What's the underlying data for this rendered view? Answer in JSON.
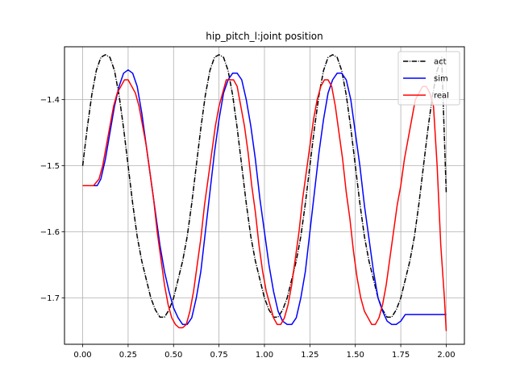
{
  "chart_data": {
    "type": "line",
    "title": "hip_pitch_l:joint position",
    "xlabel": "",
    "ylabel": "",
    "xlim": [
      -0.1,
      2.1
    ],
    "ylim": [
      -1.77,
      -1.32
    ],
    "xticks": [
      0.0,
      0.25,
      0.5,
      0.75,
      1.0,
      1.25,
      1.5,
      1.75,
      2.0
    ],
    "xtick_labels": [
      "0.00",
      "0.25",
      "0.50",
      "0.75",
      "1.00",
      "1.25",
      "1.50",
      "1.75",
      "2.00"
    ],
    "yticks": [
      -1.7,
      -1.6,
      -1.5,
      -1.4
    ],
    "ytick_labels": [
      "−1.7",
      "−1.6",
      "−1.5",
      "−1.4"
    ],
    "grid": true,
    "legend_position": "top-right",
    "series": [
      {
        "name": "act",
        "color": "#000000",
        "style": "dashdot",
        "x": [
          0.0,
          0.025,
          0.05,
          0.075,
          0.1,
          0.125,
          0.15,
          0.175,
          0.2,
          0.225,
          0.25,
          0.275,
          0.3,
          0.325,
          0.35,
          0.375,
          0.4,
          0.425,
          0.45,
          0.475,
          0.5,
          0.525,
          0.55,
          0.575,
          0.6,
          0.625,
          0.65,
          0.675,
          0.7,
          0.725,
          0.75,
          0.775,
          0.8,
          0.825,
          0.85,
          0.875,
          0.9,
          0.925,
          0.95,
          0.975,
          1.0,
          1.025,
          1.05,
          1.075,
          1.1,
          1.125,
          1.15,
          1.175,
          1.2,
          1.225,
          1.25,
          1.275,
          1.3,
          1.325,
          1.35,
          1.375,
          1.4,
          1.425,
          1.45,
          1.475,
          1.5,
          1.525,
          1.55,
          1.575,
          1.6,
          1.625,
          1.65,
          1.675,
          1.7,
          1.725,
          1.75,
          1.775,
          1.8,
          1.825,
          1.85,
          1.875,
          1.9,
          1.925,
          1.95,
          1.975,
          2.0
        ],
        "values": [
          -1.5,
          -1.443,
          -1.393,
          -1.356,
          -1.336,
          -1.332,
          -1.336,
          -1.356,
          -1.393,
          -1.443,
          -1.5,
          -1.557,
          -1.607,
          -1.644,
          -1.672,
          -1.7,
          -1.718,
          -1.729,
          -1.729,
          -1.718,
          -1.7,
          -1.672,
          -1.644,
          -1.607,
          -1.557,
          -1.5,
          -1.443,
          -1.393,
          -1.356,
          -1.336,
          -1.332,
          -1.336,
          -1.356,
          -1.393,
          -1.443,
          -1.5,
          -1.557,
          -1.607,
          -1.644,
          -1.672,
          -1.7,
          -1.718,
          -1.729,
          -1.729,
          -1.718,
          -1.7,
          -1.672,
          -1.644,
          -1.607,
          -1.557,
          -1.5,
          -1.443,
          -1.393,
          -1.356,
          -1.336,
          -1.332,
          -1.336,
          -1.356,
          -1.393,
          -1.443,
          -1.5,
          -1.557,
          -1.607,
          -1.644,
          -1.672,
          -1.7,
          -1.718,
          -1.729,
          -1.729,
          -1.718,
          -1.7,
          -1.672,
          -1.644,
          -1.607,
          -1.557,
          -1.5,
          -1.443,
          -1.393,
          -1.356,
          -1.336,
          -1.54
        ]
      },
      {
        "name": "sim",
        "color": "#0000ff",
        "style": "solid",
        "x": [
          0.0,
          0.05,
          0.08,
          0.1,
          0.125,
          0.15,
          0.175,
          0.2,
          0.225,
          0.25,
          0.275,
          0.3,
          0.325,
          0.35,
          0.375,
          0.4,
          0.425,
          0.45,
          0.475,
          0.5,
          0.525,
          0.55,
          0.575,
          0.6,
          0.625,
          0.65,
          0.675,
          0.7,
          0.725,
          0.75,
          0.775,
          0.8,
          0.825,
          0.85,
          0.875,
          0.9,
          0.925,
          0.95,
          0.975,
          1.0,
          1.025,
          1.05,
          1.075,
          1.1,
          1.125,
          1.15,
          1.175,
          1.2,
          1.225,
          1.25,
          1.275,
          1.3,
          1.325,
          1.35,
          1.375,
          1.4,
          1.425,
          1.45,
          1.475,
          1.5,
          1.525,
          1.55,
          1.575,
          1.6,
          1.625,
          1.65,
          1.675,
          1.7,
          1.725,
          1.75,
          1.775,
          1.8,
          1.825,
          1.85,
          1.875,
          1.9,
          1.925,
          1.95,
          1.975,
          2.0
        ],
        "values": [
          -1.53,
          -1.53,
          -1.53,
          -1.52,
          -1.49,
          -1.45,
          -1.41,
          -1.38,
          -1.36,
          -1.355,
          -1.36,
          -1.38,
          -1.42,
          -1.47,
          -1.52,
          -1.57,
          -1.62,
          -1.66,
          -1.69,
          -1.715,
          -1.73,
          -1.74,
          -1.74,
          -1.73,
          -1.7,
          -1.66,
          -1.6,
          -1.54,
          -1.48,
          -1.43,
          -1.39,
          -1.37,
          -1.36,
          -1.36,
          -1.37,
          -1.4,
          -1.44,
          -1.49,
          -1.55,
          -1.6,
          -1.65,
          -1.69,
          -1.72,
          -1.735,
          -1.74,
          -1.74,
          -1.73,
          -1.7,
          -1.66,
          -1.6,
          -1.54,
          -1.48,
          -1.43,
          -1.39,
          -1.37,
          -1.36,
          -1.36,
          -1.37,
          -1.4,
          -1.45,
          -1.5,
          -1.56,
          -1.61,
          -1.66,
          -1.7,
          -1.72,
          -1.735,
          -1.74,
          -1.74,
          -1.735,
          -1.725,
          -1.725,
          -1.725,
          -1.725,
          -1.725,
          -1.725,
          -1.725,
          -1.725,
          -1.725,
          -1.725
        ]
      },
      {
        "name": "real",
        "color": "#ff0000",
        "style": "solid",
        "x": [
          0.0,
          0.06,
          0.09,
          0.11,
          0.13,
          0.15,
          0.17,
          0.19,
          0.21,
          0.23,
          0.25,
          0.27,
          0.29,
          0.31,
          0.33,
          0.35,
          0.37,
          0.39,
          0.41,
          0.43,
          0.45,
          0.47,
          0.49,
          0.51,
          0.53,
          0.55,
          0.57,
          0.59,
          0.61,
          0.63,
          0.65,
          0.67,
          0.69,
          0.71,
          0.73,
          0.75,
          0.77,
          0.79,
          0.81,
          0.83,
          0.85,
          0.87,
          0.89,
          0.91,
          0.93,
          0.95,
          0.97,
          0.99,
          1.01,
          1.03,
          1.05,
          1.07,
          1.09,
          1.11,
          1.13,
          1.15,
          1.17,
          1.19,
          1.21,
          1.23,
          1.25,
          1.27,
          1.29,
          1.31,
          1.33,
          1.35,
          1.37,
          1.39,
          1.41,
          1.43,
          1.45,
          1.47,
          1.49,
          1.51,
          1.53,
          1.55,
          1.57,
          1.59,
          1.61,
          1.63,
          1.65,
          1.67,
          1.69,
          1.71,
          1.73,
          1.75,
          1.77,
          1.79,
          1.81,
          1.83,
          1.85,
          1.87,
          1.89,
          1.91,
          1.93,
          1.95,
          1.97,
          1.99,
          2.0
        ],
        "values": [
          -1.53,
          -1.53,
          -1.52,
          -1.5,
          -1.47,
          -1.44,
          -1.41,
          -1.39,
          -1.38,
          -1.37,
          -1.37,
          -1.38,
          -1.39,
          -1.41,
          -1.44,
          -1.47,
          -1.51,
          -1.55,
          -1.6,
          -1.64,
          -1.68,
          -1.71,
          -1.73,
          -1.74,
          -1.745,
          -1.745,
          -1.74,
          -1.72,
          -1.69,
          -1.65,
          -1.61,
          -1.56,
          -1.52,
          -1.48,
          -1.44,
          -1.41,
          -1.39,
          -1.37,
          -1.37,
          -1.37,
          -1.38,
          -1.41,
          -1.44,
          -1.48,
          -1.53,
          -1.57,
          -1.62,
          -1.66,
          -1.69,
          -1.71,
          -1.73,
          -1.74,
          -1.74,
          -1.73,
          -1.71,
          -1.68,
          -1.64,
          -1.6,
          -1.55,
          -1.51,
          -1.47,
          -1.43,
          -1.4,
          -1.38,
          -1.37,
          -1.37,
          -1.38,
          -1.41,
          -1.45,
          -1.49,
          -1.54,
          -1.58,
          -1.63,
          -1.67,
          -1.7,
          -1.72,
          -1.73,
          -1.74,
          -1.74,
          -1.73,
          -1.71,
          -1.68,
          -1.64,
          -1.6,
          -1.56,
          -1.53,
          -1.49,
          -1.46,
          -1.43,
          -1.4,
          -1.39,
          -1.38,
          -1.38,
          -1.39,
          -1.41,
          -1.5,
          -1.62,
          -1.7,
          -1.75
        ]
      }
    ]
  }
}
